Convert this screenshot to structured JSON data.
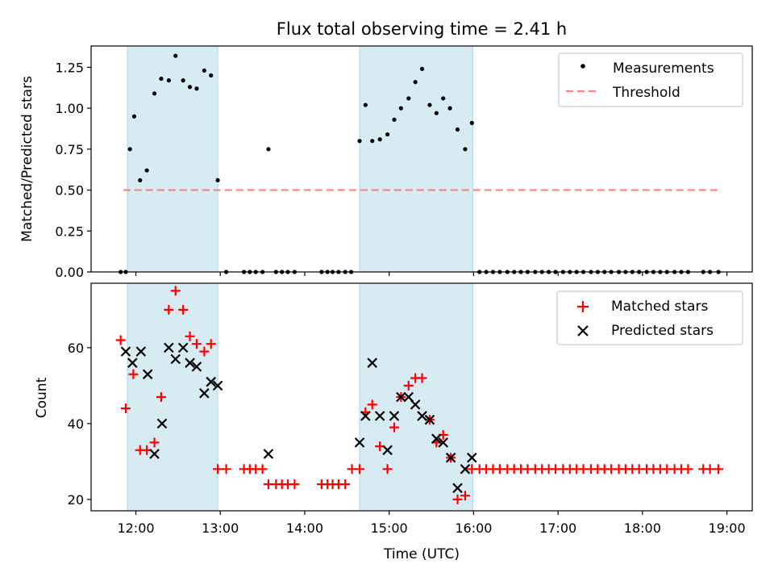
{
  "figure": {
    "title": "Flux total observing time = 2.41 h",
    "xlabel": "Time (UTC)",
    "xticks": [
      {
        "h": 12,
        "label": "12:00"
      },
      {
        "h": 13,
        "label": "13:00"
      },
      {
        "h": 14,
        "label": "14:00"
      },
      {
        "h": 15,
        "label": "15:00"
      },
      {
        "h": 16,
        "label": "16:00"
      },
      {
        "h": 17,
        "label": "17:00"
      },
      {
        "h": 18,
        "label": "18:00"
      },
      {
        "h": 19,
        "label": "19:00"
      }
    ],
    "xlim": [
      11.47,
      19.3
    ],
    "shaded_intervals": [
      [
        11.9,
        12.97
      ],
      [
        14.65,
        15.99
      ]
    ],
    "colors": {
      "shade": "#add8e6",
      "measure": "#000000",
      "threshold": "#ff7f7f",
      "matched": "#ff0000",
      "predicted": "#000000"
    }
  },
  "chart_data": [
    {
      "type": "scatter",
      "title": "Flux total observing time = 2.41 h",
      "ylabel": "Matched/Predicted stars",
      "ylim": [
        0,
        1.38
      ],
      "yticks": [
        {
          "v": 0,
          "label": "0.00"
        },
        {
          "v": 0.25,
          "label": "0.25"
        },
        {
          "v": 0.5,
          "label": "0.50"
        },
        {
          "v": 0.75,
          "label": "0.75"
        },
        {
          "v": 1.0,
          "label": "1.00"
        },
        {
          "v": 1.25,
          "label": "1.25"
        }
      ],
      "legend": {
        "position": "top-right",
        "measurements": "Measurements",
        "threshold": "Threshold"
      },
      "threshold": {
        "value": 0.5,
        "x_range": [
          11.85,
          18.9
        ]
      },
      "measurements": {
        "x": [
          11.82,
          11.88,
          11.93,
          11.98,
          12.05,
          12.13,
          12.22,
          12.3,
          12.39,
          12.47,
          12.56,
          12.64,
          12.72,
          12.81,
          12.89,
          12.97,
          13.07,
          13.28,
          13.35,
          13.42,
          13.5,
          13.57,
          13.66,
          13.73,
          13.8,
          13.88,
          14.2,
          14.27,
          14.33,
          14.4,
          14.48,
          14.55,
          14.65,
          14.72,
          14.8,
          14.89,
          14.98,
          15.06,
          15.14,
          15.23,
          15.31,
          15.39,
          15.48,
          15.56,
          15.64,
          15.72,
          15.81,
          15.9,
          15.98,
          16.07,
          16.15,
          16.23,
          16.31,
          16.4,
          16.48,
          16.56,
          16.64,
          16.73,
          16.81,
          16.89,
          16.97,
          17.06,
          17.14,
          17.22,
          17.3,
          17.39,
          17.47,
          17.55,
          17.63,
          17.72,
          17.8,
          17.88,
          17.96,
          18.05,
          18.13,
          18.21,
          18.29,
          18.38,
          18.46,
          18.54,
          18.72,
          18.8,
          18.9
        ],
        "y": [
          0,
          0,
          0.75,
          0.95,
          0.56,
          0.62,
          1.09,
          1.18,
          1.17,
          1.32,
          1.17,
          1.13,
          1.12,
          1.23,
          1.2,
          0.56,
          0,
          0,
          0,
          0,
          0,
          0.75,
          0,
          0,
          0,
          0,
          0,
          0,
          0,
          0,
          0,
          0,
          0.8,
          1.02,
          0.8,
          0.81,
          0.84,
          0.93,
          1.0,
          1.06,
          1.16,
          1.24,
          1.02,
          0.97,
          1.06,
          1.0,
          0.87,
          0.75,
          0.91,
          0,
          0,
          0,
          0,
          0,
          0,
          0,
          0,
          0,
          0,
          0,
          0,
          0,
          0,
          0,
          0,
          0,
          0,
          0,
          0,
          0,
          0,
          0,
          0,
          0,
          0,
          0,
          0,
          0,
          0,
          0,
          0,
          0,
          0
        ]
      }
    },
    {
      "type": "scatter",
      "ylabel": "Count",
      "ylim": [
        17,
        77
      ],
      "yticks": [
        {
          "v": 20,
          "label": "20"
        },
        {
          "v": 40,
          "label": "40"
        },
        {
          "v": 60,
          "label": "60"
        }
      ],
      "legend": {
        "position": "top-right",
        "matched": "Matched stars",
        "predicted": "Predicted stars"
      },
      "matched": {
        "x": [
          11.82,
          11.88,
          11.97,
          12.05,
          12.13,
          12.22,
          12.3,
          12.39,
          12.47,
          12.56,
          12.64,
          12.72,
          12.81,
          12.89,
          12.97,
          13.07,
          13.28,
          13.35,
          13.42,
          13.5,
          13.57,
          13.66,
          13.73,
          13.8,
          13.88,
          14.2,
          14.27,
          14.33,
          14.4,
          14.48,
          14.56,
          14.65,
          14.72,
          14.8,
          14.89,
          14.98,
          15.06,
          15.14,
          15.23,
          15.31,
          15.39,
          15.48,
          15.56,
          15.64,
          15.73,
          15.81,
          15.9,
          15.98,
          16.07,
          16.15,
          16.23,
          16.31,
          16.4,
          16.48,
          16.56,
          16.64,
          16.73,
          16.81,
          16.89,
          16.97,
          17.06,
          17.14,
          17.22,
          17.3,
          17.39,
          17.47,
          17.55,
          17.63,
          17.72,
          17.8,
          17.88,
          17.96,
          18.05,
          18.13,
          18.21,
          18.29,
          18.38,
          18.46,
          18.54,
          18.72,
          18.8,
          18.9
        ],
        "y": [
          62,
          44,
          53,
          33,
          33,
          35,
          47,
          70,
          75,
          70,
          63,
          61,
          59,
          61,
          28,
          28,
          28,
          28,
          28,
          28,
          24,
          24,
          24,
          24,
          24,
          24,
          24,
          24,
          24,
          24,
          28,
          28,
          43,
          45,
          34,
          28,
          39,
          47,
          50,
          52,
          52,
          41,
          35,
          37,
          31,
          20,
          21,
          28,
          28,
          28,
          28,
          28,
          28,
          28,
          28,
          28,
          28,
          28,
          28,
          28,
          28,
          28,
          28,
          28,
          28,
          28,
          28,
          28,
          28,
          28,
          28,
          28,
          28,
          28,
          28,
          28,
          28,
          28,
          28,
          28,
          28,
          28
        ]
      },
      "predicted": {
        "x": [
          11.88,
          11.96,
          12.06,
          12.14,
          12.22,
          12.31,
          12.39,
          12.47,
          12.56,
          12.64,
          12.72,
          12.81,
          12.89,
          12.97,
          13.57,
          14.65,
          14.72,
          14.8,
          14.89,
          14.98,
          15.06,
          15.14,
          15.23,
          15.31,
          15.39,
          15.48,
          15.56,
          15.64,
          15.73,
          15.81,
          15.9,
          15.98
        ],
        "y": [
          59,
          56,
          59,
          53,
          32,
          40,
          60,
          57,
          60,
          56,
          55,
          48,
          51,
          50,
          32,
          35,
          42,
          56,
          42,
          33,
          42,
          47,
          47,
          45,
          42,
          41,
          36,
          35,
          31,
          23,
          28,
          31
        ]
      }
    }
  ]
}
